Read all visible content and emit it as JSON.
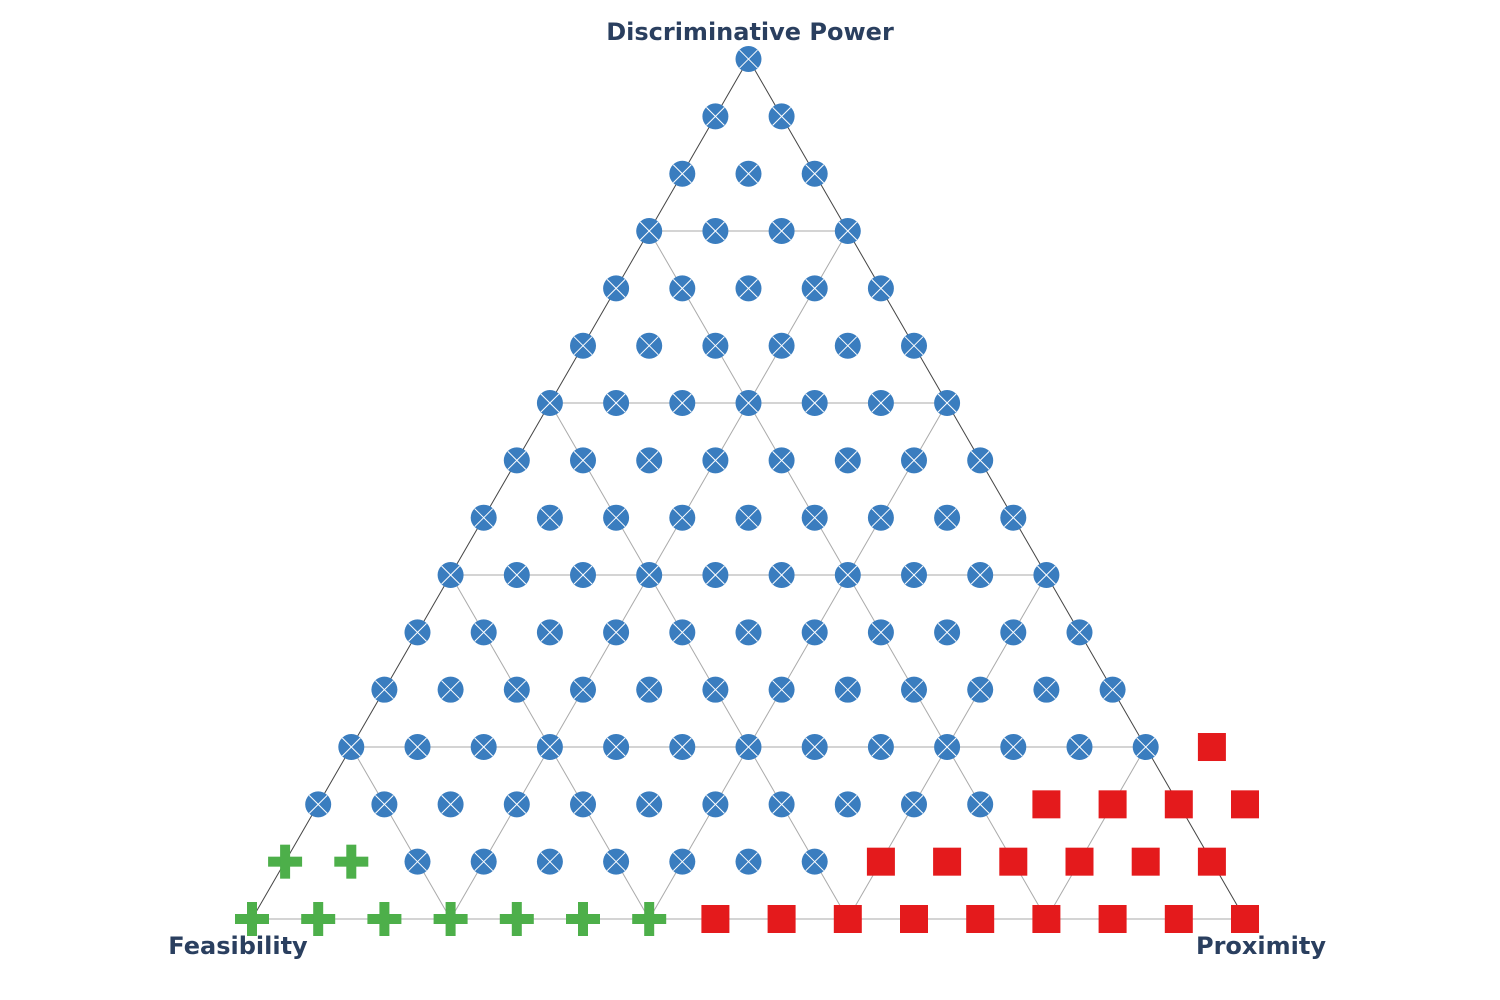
{
  "chart_data": {
    "type": "scatter",
    "subtype": "ternary",
    "axes": {
      "top": "Discriminative Power",
      "left": "Feasibility",
      "right": "Proximity"
    },
    "grid_divisions": 15,
    "grid": true,
    "classes": [
      {
        "marker": "circle-x",
        "color": "#3a7dbf"
      },
      {
        "marker": "square",
        "color": "#e41a1c"
      },
      {
        "marker": "cross",
        "color": "#4daf4a"
      }
    ],
    "series": [
      {
        "marker": "square",
        "color": "#e41a1c",
        "points": [
          [
            7,
            0
          ],
          [
            8,
            0
          ],
          [
            9,
            0
          ],
          [
            10,
            0
          ],
          [
            11,
            0
          ],
          [
            12,
            0
          ],
          [
            13,
            0
          ],
          [
            14,
            0
          ],
          [
            15,
            0
          ],
          [
            9,
            1
          ],
          [
            10,
            1
          ],
          [
            11,
            1
          ],
          [
            12,
            1
          ],
          [
            13,
            1
          ],
          [
            14,
            1
          ],
          [
            11,
            2
          ],
          [
            12,
            2
          ],
          [
            13,
            2
          ],
          [
            14,
            2
          ],
          [
            13,
            3
          ]
        ]
      },
      {
        "marker": "cross",
        "color": "#4daf4a",
        "points": [
          [
            0,
            0
          ],
          [
            1,
            0
          ],
          [
            2,
            0
          ],
          [
            3,
            0
          ],
          [
            4,
            0
          ],
          [
            5,
            0
          ],
          [
            6,
            0
          ],
          [
            0,
            1
          ],
          [
            1,
            1
          ]
        ]
      },
      {
        "marker": "circle-x",
        "color": "#3a7dbf",
        "points": [
          [
            2,
            1
          ],
          [
            3,
            1
          ],
          [
            4,
            1
          ],
          [
            5,
            1
          ],
          [
            6,
            1
          ],
          [
            7,
            1
          ],
          [
            8,
            1
          ],
          [
            0,
            2
          ],
          [
            1,
            2
          ],
          [
            2,
            2
          ],
          [
            3,
            2
          ],
          [
            4,
            2
          ],
          [
            5,
            2
          ],
          [
            6,
            2
          ],
          [
            7,
            2
          ],
          [
            8,
            2
          ],
          [
            9,
            2
          ],
          [
            10,
            2
          ],
          [
            0,
            3
          ],
          [
            1,
            3
          ],
          [
            2,
            3
          ],
          [
            3,
            3
          ],
          [
            4,
            3
          ],
          [
            5,
            3
          ],
          [
            6,
            3
          ],
          [
            7,
            3
          ],
          [
            8,
            3
          ],
          [
            9,
            3
          ],
          [
            10,
            3
          ],
          [
            11,
            3
          ],
          [
            12,
            3
          ],
          [
            0,
            4
          ],
          [
            1,
            4
          ],
          [
            2,
            4
          ],
          [
            3,
            4
          ],
          [
            4,
            4
          ],
          [
            5,
            4
          ],
          [
            6,
            4
          ],
          [
            7,
            4
          ],
          [
            8,
            4
          ],
          [
            9,
            4
          ],
          [
            10,
            4
          ],
          [
            11,
            4
          ],
          [
            0,
            5
          ],
          [
            1,
            5
          ],
          [
            2,
            5
          ],
          [
            3,
            5
          ],
          [
            4,
            5
          ],
          [
            5,
            5
          ],
          [
            6,
            5
          ],
          [
            7,
            5
          ],
          [
            8,
            5
          ],
          [
            9,
            5
          ],
          [
            10,
            5
          ],
          [
            0,
            6
          ],
          [
            1,
            6
          ],
          [
            2,
            6
          ],
          [
            3,
            6
          ],
          [
            4,
            6
          ],
          [
            5,
            6
          ],
          [
            6,
            6
          ],
          [
            7,
            6
          ],
          [
            8,
            6
          ],
          [
            9,
            6
          ],
          [
            0,
            7
          ],
          [
            1,
            7
          ],
          [
            2,
            7
          ],
          [
            3,
            7
          ],
          [
            4,
            7
          ],
          [
            5,
            7
          ],
          [
            6,
            7
          ],
          [
            7,
            7
          ],
          [
            8,
            7
          ],
          [
            0,
            8
          ],
          [
            1,
            8
          ],
          [
            2,
            8
          ],
          [
            3,
            8
          ],
          [
            4,
            8
          ],
          [
            5,
            8
          ],
          [
            6,
            8
          ],
          [
            7,
            8
          ],
          [
            0,
            9
          ],
          [
            1,
            9
          ],
          [
            2,
            9
          ],
          [
            3,
            9
          ],
          [
            4,
            9
          ],
          [
            5,
            9
          ],
          [
            6,
            9
          ],
          [
            0,
            10
          ],
          [
            1,
            10
          ],
          [
            2,
            10
          ],
          [
            3,
            10
          ],
          [
            4,
            10
          ],
          [
            5,
            10
          ],
          [
            0,
            11
          ],
          [
            1,
            11
          ],
          [
            2,
            11
          ],
          [
            3,
            11
          ],
          [
            4,
            11
          ],
          [
            0,
            12
          ],
          [
            1,
            12
          ],
          [
            2,
            12
          ],
          [
            3,
            12
          ],
          [
            0,
            13
          ],
          [
            1,
            13
          ],
          [
            2,
            13
          ],
          [
            0,
            14
          ],
          [
            1,
            14
          ],
          [
            0,
            15
          ]
        ]
      }
    ]
  }
}
